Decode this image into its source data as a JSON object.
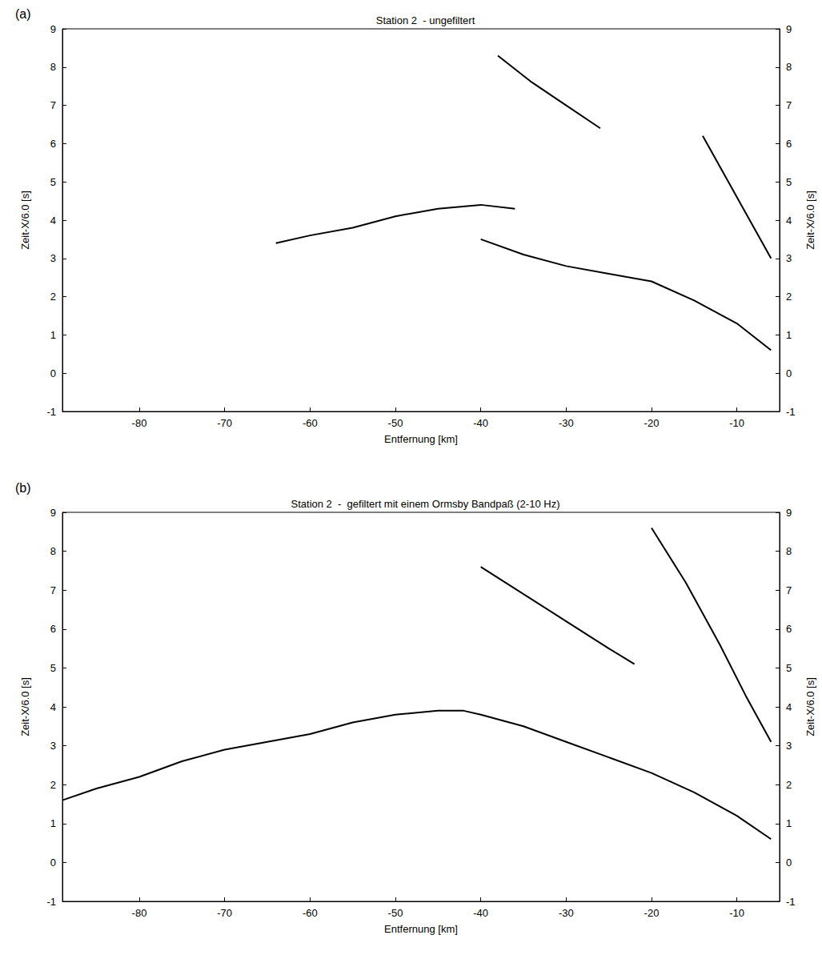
{
  "chart_data": [
    {
      "type": "line",
      "panel": "(a)",
      "title": "Station 2  - ungefiltert",
      "xlabel": "Entfernung [km]",
      "ylabel": "Zeit-X/6.0 [s]",
      "y2label": "Zeit-X/6.0 [s]",
      "xlim": [
        -89,
        -5
      ],
      "xticks": [
        -80,
        -70,
        -60,
        -50,
        -40,
        -30,
        -20,
        -10
      ],
      "ylim": [
        -1,
        9
      ],
      "yticks": [
        -1,
        0,
        1,
        2,
        3,
        4,
        5,
        6,
        7,
        8,
        9
      ],
      "y2lim": [
        -1,
        9
      ],
      "y2ticks": [
        -1,
        0,
        1,
        2,
        3,
        4,
        5,
        6,
        7,
        8,
        9
      ],
      "grid": false,
      "tick_labels": true,
      "series": [
        {
          "color": "#000000",
          "x": [
            -6,
            -10,
            -15,
            -20,
            -25,
            -30,
            -35,
            -40
          ],
          "values": [
            0.6,
            1.3,
            1.9,
            2.4,
            2.6,
            2.8,
            3.1,
            3.5
          ]
        },
        {
          "color": "#000000",
          "x": [
            -64,
            -60,
            -55,
            -50,
            -45,
            -40,
            -36
          ],
          "values": [
            3.4,
            3.6,
            3.8,
            4.1,
            4.3,
            4.4,
            4.3
          ]
        },
        {
          "color": "#000000",
          "x": [
            -38,
            -34,
            -30,
            -26
          ],
          "values": [
            8.3,
            7.6,
            7.0,
            6.4
          ]
        },
        {
          "color": "#000000",
          "x": [
            -14,
            -12,
            -10,
            -8,
            -6
          ],
          "values": [
            6.2,
            5.4,
            4.6,
            3.8,
            3.0
          ]
        }
      ]
    },
    {
      "type": "line",
      "panel": "(b)",
      "title": "Station 2  -  gefiltert mit einem Ormsby Bandpaß (2-10 Hz)",
      "xlabel": "Entfernung [km]",
      "ylabel": "Zeit-X/6.0 [s]",
      "y2label": "Zeit-X/6.0 [s]",
      "xlim": [
        -89,
        -5
      ],
      "xticks": [
        -80,
        -70,
        -60,
        -50,
        -40,
        -30,
        -20,
        -10
      ],
      "ylim": [
        -1,
        9
      ],
      "yticks": [
        -1,
        0,
        1,
        2,
        3,
        4,
        5,
        6,
        7,
        8,
        9
      ],
      "y2lim": [
        -1,
        9
      ],
      "y2ticks": [
        -1,
        0,
        1,
        2,
        3,
        4,
        5,
        6,
        7,
        8,
        9
      ],
      "grid": false,
      "tick_labels": true,
      "series": [
        {
          "color": "#000000",
          "x": [
            -89,
            -85,
            -80,
            -75,
            -70,
            -65,
            -60,
            -55,
            -50,
            -45,
            -42,
            -40,
            -35,
            -30,
            -25,
            -20,
            -15,
            -10,
            -6
          ],
          "values": [
            1.6,
            1.9,
            2.2,
            2.6,
            2.9,
            3.1,
            3.3,
            3.6,
            3.8,
            3.9,
            3.9,
            3.8,
            3.5,
            3.1,
            2.7,
            2.3,
            1.8,
            1.2,
            0.6
          ]
        },
        {
          "color": "#000000",
          "x": [
            -40,
            -35,
            -30,
            -25,
            -22
          ],
          "values": [
            7.6,
            6.9,
            6.2,
            5.5,
            5.1
          ]
        },
        {
          "color": "#000000",
          "x": [
            -20,
            -16,
            -12,
            -9,
            -6
          ],
          "values": [
            8.6,
            7.2,
            5.6,
            4.3,
            3.1
          ]
        }
      ]
    }
  ]
}
